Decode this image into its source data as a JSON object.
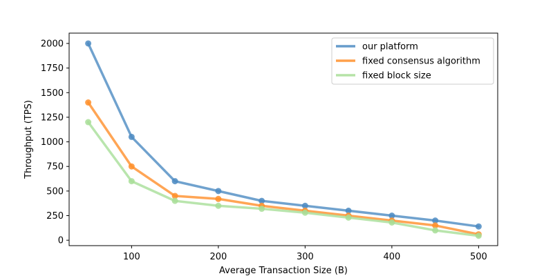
{
  "chart_data": {
    "type": "line",
    "title": "",
    "xlabel": "Average Transaction Size (B)",
    "ylabel": "Throughput (TPS)",
    "x": [
      50,
      100,
      150,
      200,
      250,
      300,
      350,
      400,
      450,
      500
    ],
    "xlim": [
      28,
      522
    ],
    "ylim": [
      -55,
      2105
    ],
    "xticks": [
      "100",
      "200",
      "300",
      "400",
      "500"
    ],
    "yticks": [
      "0",
      "250",
      "500",
      "750",
      "1000",
      "1250",
      "1500",
      "1750",
      "2000"
    ],
    "grid": false,
    "legend_position": "top-right",
    "series": [
      {
        "name": "our platform",
        "color": "#4C8BC2",
        "values": [
          2000,
          1050,
          600,
          500,
          400,
          350,
          300,
          250,
          200,
          140
        ]
      },
      {
        "name": "fixed consensus algorithm",
        "color": "#FF8F2A",
        "values": [
          1400,
          750,
          450,
          420,
          350,
          300,
          250,
          200,
          150,
          60
        ]
      },
      {
        "name": "fixed block size",
        "color": "#A8DE98",
        "values": [
          1200,
          600,
          400,
          350,
          320,
          280,
          230,
          180,
          100,
          45
        ]
      }
    ]
  }
}
